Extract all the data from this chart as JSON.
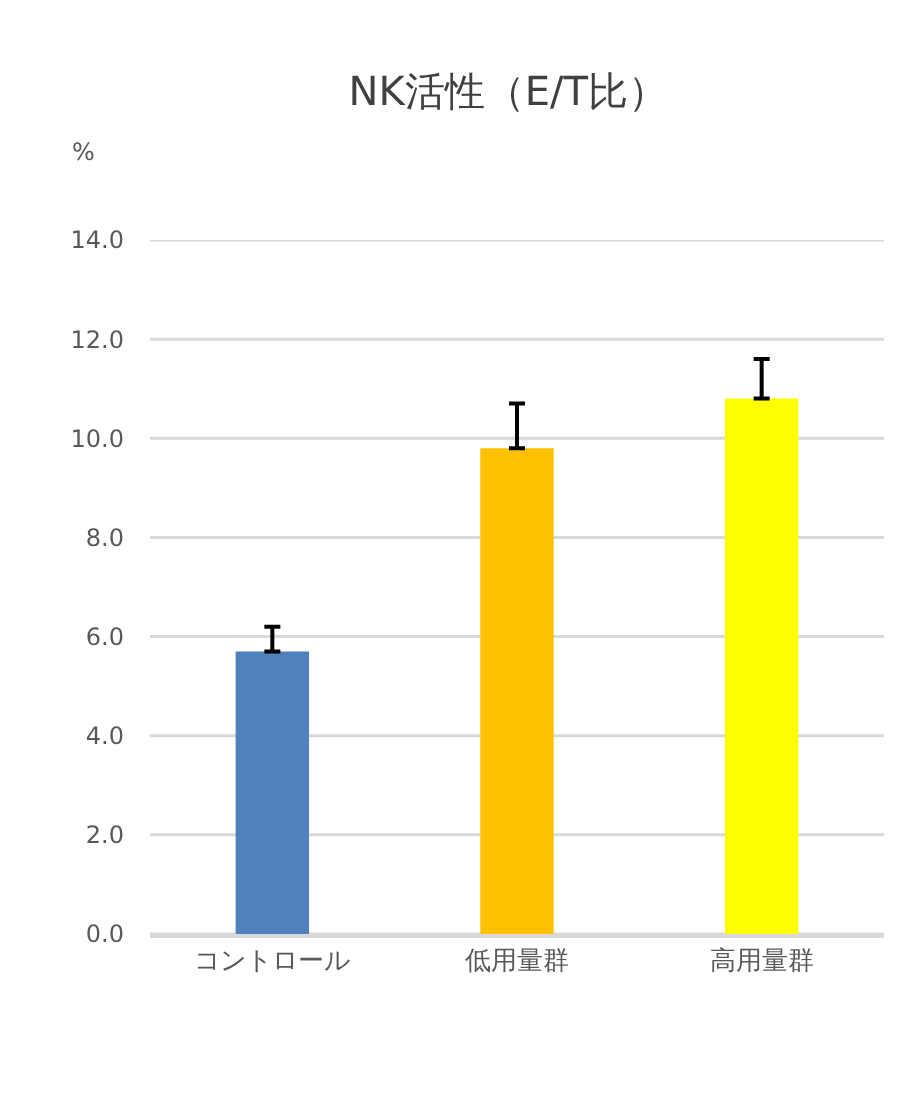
{
  "chart_data": {
    "type": "bar",
    "title": "NK活性（E/T比）",
    "ylabel": "%",
    "categories": [
      "コントロール",
      "低用量群",
      "高用量群"
    ],
    "values": [
      5.7,
      9.8,
      10.8
    ],
    "colors": [
      "#4f81bd",
      "#ffc000",
      "#ffff00"
    ],
    "errors": [
      0.5,
      0.9,
      0.8
    ],
    "ylim": [
      0,
      14
    ],
    "yticks": [
      {
        "value": 0,
        "label": "0.0"
      },
      {
        "value": 2,
        "label": "2.0"
      },
      {
        "value": 4,
        "label": "4.0"
      },
      {
        "value": 6,
        "label": "6.0"
      },
      {
        "value": 8,
        "label": "8.0"
      },
      {
        "value": 10,
        "label": "10.0"
      },
      {
        "value": 12,
        "label": "12.0"
      },
      {
        "value": 14,
        "label": "14.0"
      }
    ],
    "grid": "y"
  }
}
